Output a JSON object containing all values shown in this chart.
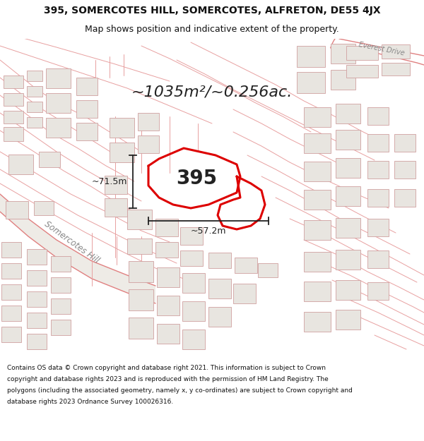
{
  "title_line1": "395, SOMERCOTES HILL, SOMERCOTES, ALFRETON, DE55 4JX",
  "title_line2": "Map shows position and indicative extent of the property.",
  "area_text": "~1035m²/~0.256ac.",
  "label_395": "395",
  "dim_width": "~57.2m",
  "dim_height": "~71.5m",
  "road_label": "Somercotes Hill",
  "everest_label": "Everest Drive",
  "footer": "Contains OS data © Crown copyright and database right 2021. This information is subject to Crown copyright and database rights 2023 and is reproduced with the permission of HM Land Registry. The polygons (including the associated geometry, namely x, y co-ordinates) are subject to Crown copyright and database rights 2023 Ordnance Survey 100026316.",
  "bg_color": "#f5f3f0",
  "map_bg": "#f5f3f0",
  "building_fill": "#e8e5e0",
  "building_edge": "#d0a0a0",
  "plot_edge": "#dd0000",
  "road_fill": "#eeebe6",
  "road_line_color": "#e08080",
  "parcel_line_color": "#e8a0a0",
  "footer_bg": "#ffffff",
  "title_bg": "#ffffff",
  "title_fontsize": 10,
  "subtitle_fontsize": 9,
  "area_fontsize": 16,
  "dim_fontsize": 9,
  "label_fontsize": 20,
  "footer_fontsize": 6.5
}
